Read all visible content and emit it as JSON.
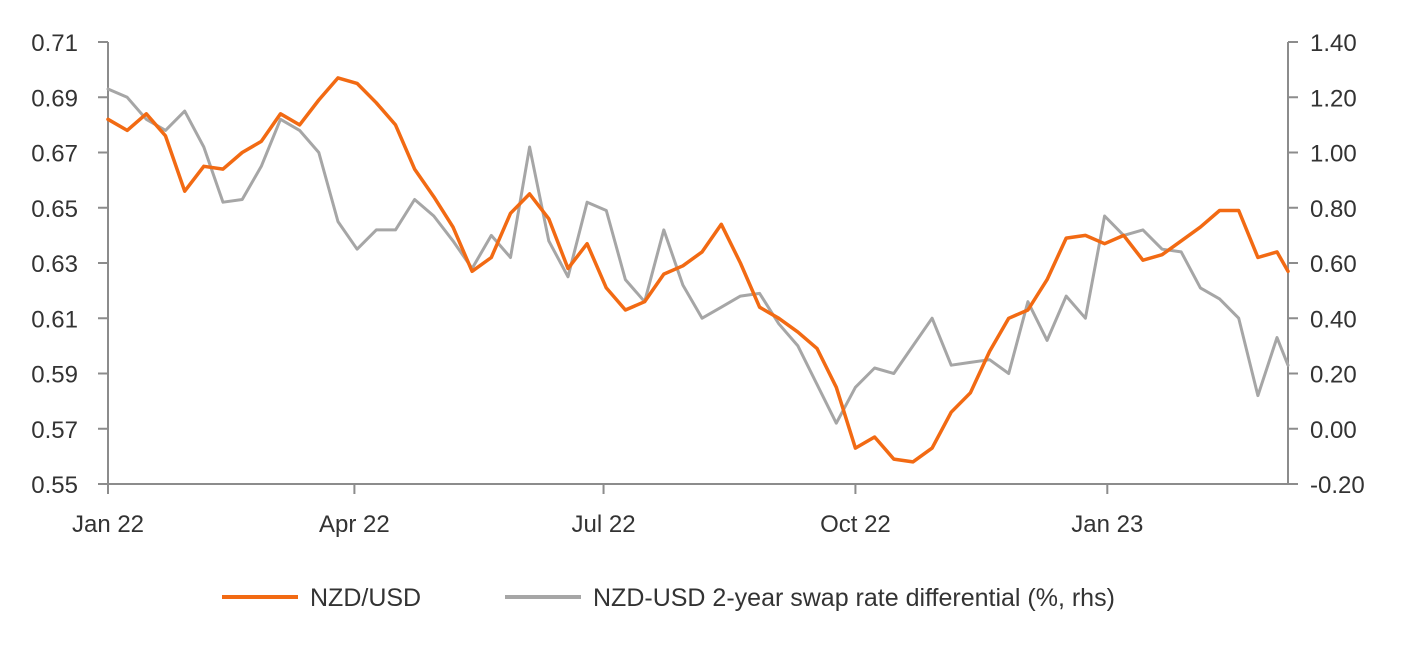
{
  "colors": {
    "nzdusd": "#f26a13",
    "swap_diff": "#a6a6a6",
    "axis": "#8c8c8c",
    "text": "#333333"
  },
  "chart_data": {
    "type": "line",
    "title": "",
    "xlabel": "",
    "ylabel_left": "",
    "ylabel_right": "",
    "x_tick_labels": [
      "Jan 22",
      "Apr 22",
      "Jul 22",
      "Oct 22",
      "Jan 23"
    ],
    "x_tick_dates": [
      "2022-01-01",
      "2022-04-01",
      "2022-07-01",
      "2022-10-01",
      "2023-01-01"
    ],
    "xlim": [
      "2022-01-01",
      "2023-03-08"
    ],
    "ylim_left": [
      0.55,
      0.71
    ],
    "ylim_right": [
      -0.2,
      1.4
    ],
    "yticks_left": [
      "0.71",
      "0.69",
      "0.67",
      "0.65",
      "0.63",
      "0.61",
      "0.59",
      "0.57",
      "0.55"
    ],
    "yticks_right": [
      "1.40",
      "1.20",
      "1.00",
      "0.80",
      "0.60",
      "0.40",
      "0.20",
      "0.00",
      "-0.20"
    ],
    "grid": false,
    "legend_position": "bottom",
    "series": [
      {
        "name": "NZD/USD",
        "axis": "left",
        "x": [
          "2022-01-01",
          "2022-01-08",
          "2022-01-15",
          "2022-01-22",
          "2022-01-29",
          "2022-02-05",
          "2022-02-12",
          "2022-02-19",
          "2022-02-26",
          "2022-03-05",
          "2022-03-12",
          "2022-03-19",
          "2022-03-26",
          "2022-04-02",
          "2022-04-09",
          "2022-04-16",
          "2022-04-23",
          "2022-04-30",
          "2022-05-07",
          "2022-05-14",
          "2022-05-21",
          "2022-05-28",
          "2022-06-04",
          "2022-06-11",
          "2022-06-18",
          "2022-06-25",
          "2022-07-02",
          "2022-07-09",
          "2022-07-16",
          "2022-07-23",
          "2022-07-30",
          "2022-08-06",
          "2022-08-13",
          "2022-08-20",
          "2022-08-27",
          "2022-09-03",
          "2022-09-10",
          "2022-09-17",
          "2022-09-24",
          "2022-10-01",
          "2022-10-08",
          "2022-10-15",
          "2022-10-22",
          "2022-10-29",
          "2022-11-05",
          "2022-11-12",
          "2022-11-19",
          "2022-11-26",
          "2022-12-03",
          "2022-12-10",
          "2022-12-17",
          "2022-12-24",
          "2022-12-31",
          "2023-01-07",
          "2023-01-14",
          "2023-01-21",
          "2023-01-28",
          "2023-02-04",
          "2023-02-11",
          "2023-02-18",
          "2023-02-25",
          "2023-03-04",
          "2023-03-08"
        ],
        "values": [
          0.682,
          0.678,
          0.684,
          0.676,
          0.656,
          0.665,
          0.664,
          0.67,
          0.674,
          0.684,
          0.68,
          0.689,
          0.697,
          0.695,
          0.688,
          0.68,
          0.664,
          0.654,
          0.643,
          0.627,
          0.632,
          0.648,
          0.655,
          0.646,
          0.628,
          0.637,
          0.621,
          0.613,
          0.616,
          0.626,
          0.629,
          0.634,
          0.644,
          0.63,
          0.614,
          0.61,
          0.605,
          0.599,
          0.585,
          0.563,
          0.567,
          0.559,
          0.558,
          0.563,
          0.576,
          0.583,
          0.598,
          0.61,
          0.613,
          0.624,
          0.639,
          0.64,
          0.637,
          0.64,
          0.631,
          0.633,
          0.638,
          0.643,
          0.649,
          0.649,
          0.632,
          0.634,
          0.627
        ]
      },
      {
        "name": "NZD-USD 2-year swap rate differential (%, rhs)",
        "axis": "right",
        "x": [
          "2022-01-01",
          "2022-01-08",
          "2022-01-15",
          "2022-01-22",
          "2022-01-29",
          "2022-02-05",
          "2022-02-12",
          "2022-02-19",
          "2022-02-26",
          "2022-03-05",
          "2022-03-12",
          "2022-03-19",
          "2022-03-26",
          "2022-04-02",
          "2022-04-09",
          "2022-04-16",
          "2022-04-23",
          "2022-04-30",
          "2022-05-07",
          "2022-05-14",
          "2022-05-21",
          "2022-05-28",
          "2022-06-04",
          "2022-06-11",
          "2022-06-18",
          "2022-06-25",
          "2022-07-02",
          "2022-07-09",
          "2022-07-16",
          "2022-07-23",
          "2022-07-30",
          "2022-08-06",
          "2022-08-13",
          "2022-08-20",
          "2022-08-27",
          "2022-09-03",
          "2022-09-10",
          "2022-09-17",
          "2022-09-24",
          "2022-10-01",
          "2022-10-08",
          "2022-10-15",
          "2022-10-22",
          "2022-10-29",
          "2022-11-05",
          "2022-11-12",
          "2022-11-19",
          "2022-11-26",
          "2022-12-03",
          "2022-12-10",
          "2022-12-17",
          "2022-12-24",
          "2022-12-31",
          "2023-01-07",
          "2023-01-14",
          "2023-01-21",
          "2023-01-28",
          "2023-02-04",
          "2023-02-11",
          "2023-02-18",
          "2023-02-25",
          "2023-03-04",
          "2023-03-08"
        ],
        "values": [
          1.23,
          1.2,
          1.12,
          1.08,
          1.15,
          1.02,
          0.82,
          0.83,
          0.95,
          1.12,
          1.08,
          1.0,
          0.75,
          0.65,
          0.72,
          0.72,
          0.83,
          0.77,
          0.68,
          0.58,
          0.7,
          0.62,
          1.02,
          0.68,
          0.55,
          0.82,
          0.79,
          0.54,
          0.46,
          0.72,
          0.52,
          0.4,
          0.44,
          0.48,
          0.49,
          0.38,
          0.3,
          0.16,
          0.02,
          0.15,
          0.22,
          0.2,
          0.3,
          0.4,
          0.23,
          0.24,
          0.25,
          0.2,
          0.46,
          0.32,
          0.48,
          0.4,
          0.77,
          0.7,
          0.72,
          0.65,
          0.64,
          0.51,
          0.47,
          0.4,
          0.12,
          0.33,
          0.23
        ]
      }
    ]
  }
}
